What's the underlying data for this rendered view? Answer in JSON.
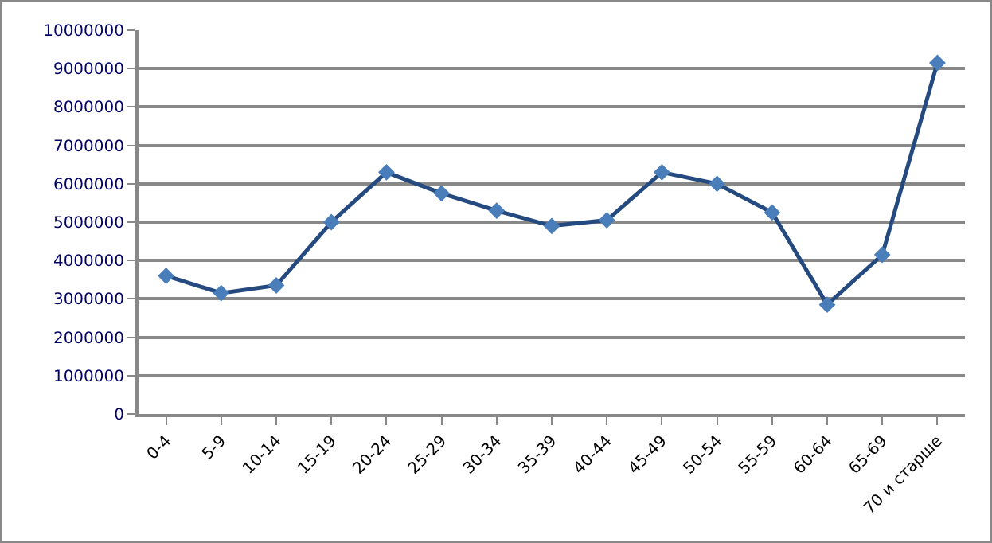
{
  "chart_data": {
    "type": "line",
    "categories": [
      "0-4",
      "5-9",
      "10-14",
      "15-19",
      "20-24",
      "25-29",
      "30-34",
      "35-39",
      "40-44",
      "45-49",
      "50-54",
      "55-59",
      "60-64",
      "65-69",
      "70 и старше"
    ],
    "series": [
      {
        "color": "#254a7f",
        "values": [
          3600000,
          3150000,
          3350000,
          5000000,
          6300000,
          5750000,
          5300000,
          4900000,
          5050000,
          6300000,
          6000000,
          5250000,
          2850000,
          4150000,
          9150000
        ]
      }
    ],
    "ylim": [
      0,
      10000000
    ],
    "yticks": [
      0,
      1000000,
      2000000,
      3000000,
      4000000,
      5000000,
      6000000,
      7000000,
      8000000,
      9000000,
      10000000
    ],
    "grid": "y",
    "legend": false,
    "marker": "diamond",
    "line_style": "solid"
  }
}
